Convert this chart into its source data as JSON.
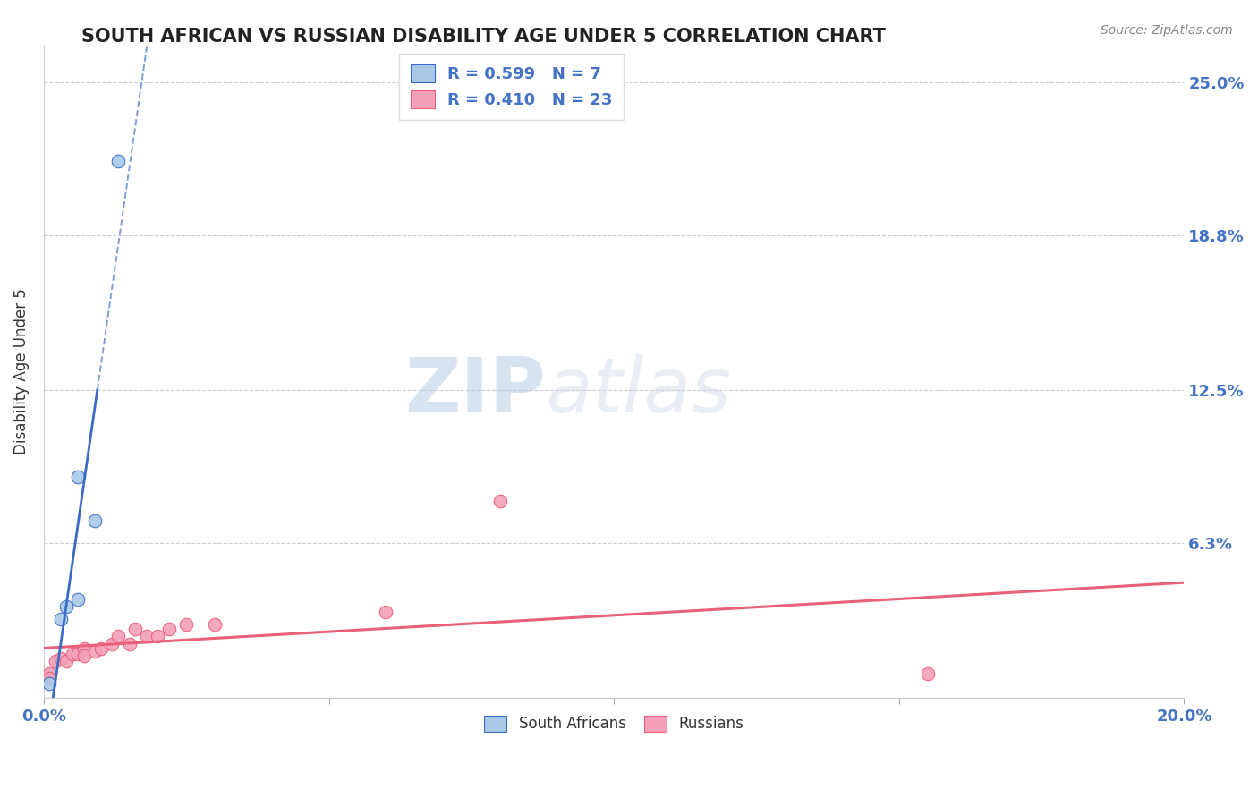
{
  "title": "SOUTH AFRICAN VS RUSSIAN DISABILITY AGE UNDER 5 CORRELATION CHART",
  "source": "Source: ZipAtlas.com",
  "ylabel": "Disability Age Under 5",
  "xlim": [
    0.0,
    0.2
  ],
  "ylim": [
    0.0,
    0.265
  ],
  "xticks": [
    0.0,
    0.05,
    0.1,
    0.15,
    0.2
  ],
  "xticklabels": [
    "0.0%",
    "",
    "",
    "",
    "20.0%"
  ],
  "ytick_positions": [
    0.0,
    0.063,
    0.125,
    0.188,
    0.25
  ],
  "ytick_labels": [
    "",
    "6.3%",
    "12.5%",
    "18.8%",
    "25.0%"
  ],
  "sa_x": [
    0.013,
    0.006,
    0.009,
    0.006,
    0.004,
    0.003,
    0.001
  ],
  "sa_y": [
    0.218,
    0.09,
    0.072,
    0.04,
    0.037,
    0.032,
    0.006
  ],
  "ru_x": [
    0.001,
    0.001,
    0.002,
    0.003,
    0.004,
    0.005,
    0.006,
    0.007,
    0.007,
    0.009,
    0.01,
    0.012,
    0.013,
    0.015,
    0.016,
    0.018,
    0.02,
    0.022,
    0.025,
    0.03,
    0.06,
    0.08,
    0.155
  ],
  "ru_y": [
    0.01,
    0.008,
    0.015,
    0.016,
    0.015,
    0.018,
    0.018,
    0.02,
    0.017,
    0.019,
    0.02,
    0.022,
    0.025,
    0.022,
    0.028,
    0.025,
    0.025,
    0.028,
    0.03,
    0.03,
    0.035,
    0.08,
    0.01
  ],
  "sa_color": "#A8C8E8",
  "ru_color": "#F4A0B8",
  "sa_line_color": "#3A6BC4",
  "ru_line_color": "#E8607A",
  "sa_R": 0.599,
  "sa_N": 7,
  "ru_R": 0.41,
  "ru_N": 23,
  "legend_label_sa": "South Africans",
  "legend_label_ru": "Russians",
  "watermark_zip": "ZIP",
  "watermark_atlas": "atlas",
  "background_color": "#FFFFFF",
  "grid_color": "#C8C8C8",
  "title_color": "#222222",
  "axis_label_color": "#333333",
  "tick_color": "#4472C4",
  "source_color": "#888888"
}
